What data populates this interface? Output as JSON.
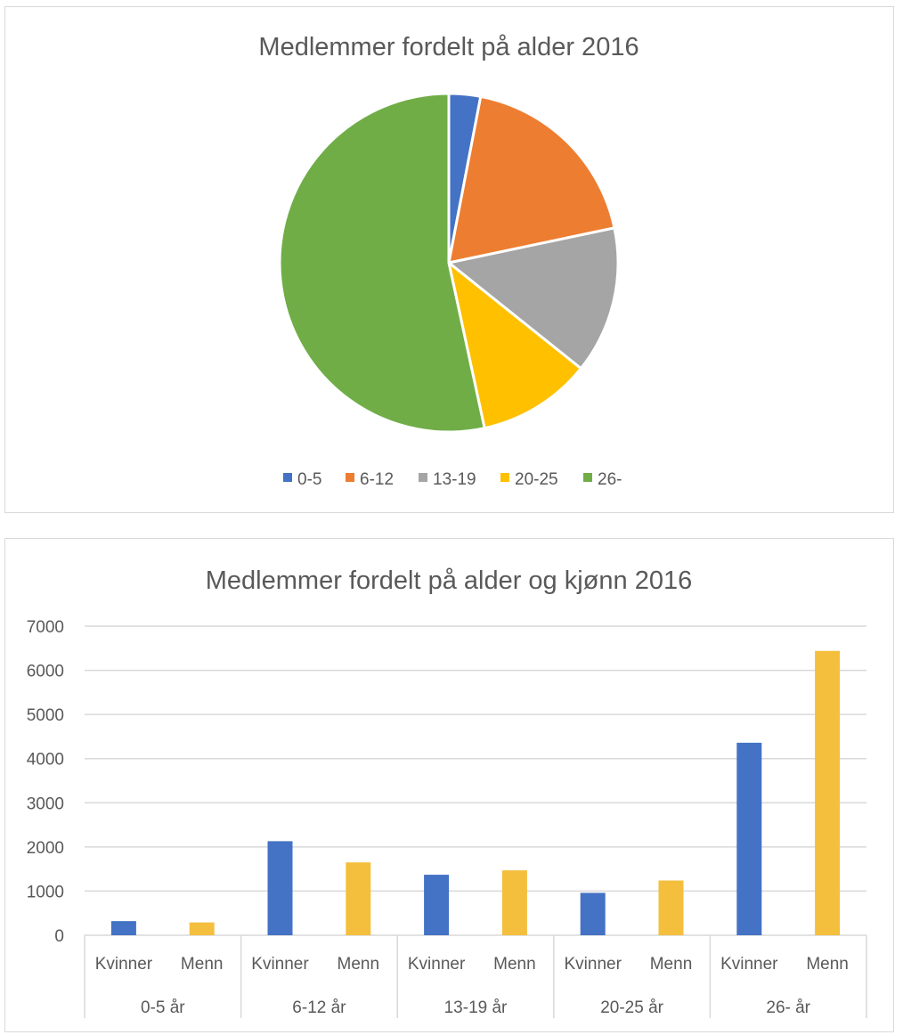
{
  "chart_data": [
    {
      "type": "pie",
      "title": "Medlemmer fordelt på alder 2016",
      "labels": [
        "0-5",
        "6-12",
        "13-19",
        "20-25",
        "26-"
      ],
      "values": [
        610,
        3780,
        2840,
        2200,
        10800
      ],
      "colors": [
        "#4472c4",
        "#ed7d31",
        "#a5a5a5",
        "#ffc000",
        "#70ad47"
      ],
      "legend": "bottom"
    },
    {
      "type": "bar",
      "title": "Medlemmer fordelt på alder og kjønn 2016",
      "groups": [
        "0-5 år",
        "6-12 år",
        "13-19 år",
        "20-25 år",
        "26- år"
      ],
      "categories": [
        "Kvinner",
        "Menn"
      ],
      "series_colors": [
        "#4472c4",
        "#f4bf3d"
      ],
      "values": [
        [
          320,
          290
        ],
        [
          2130,
          1650
        ],
        [
          1370,
          1470
        ],
        [
          960,
          1240
        ],
        [
          4360,
          6440
        ]
      ],
      "yticks": [
        "0",
        "1000",
        "2000",
        "3000",
        "4000",
        "5000",
        "6000",
        "7000"
      ],
      "ylim": [
        0,
        7000
      ],
      "grid": true
    }
  ]
}
